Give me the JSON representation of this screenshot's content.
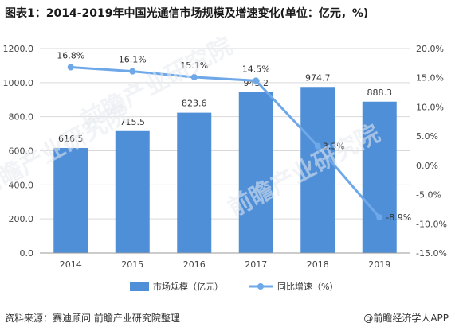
{
  "title": "图表1：2014-2019年中国光通信市场规模及增速变化(单位：亿元，%)",
  "footer": {
    "source": "资料来源：赛迪顾问 前瞻产业研究院整理",
    "brand": "@前瞻经济学人APP"
  },
  "watermarks": [
    "前瞻产业研究院",
    "前瞻产业研究院",
    "前瞻产业研究院"
  ],
  "colors": {
    "bar": "#4f8fd8",
    "line": "#6fa8e8",
    "grid": "#d9d9d9",
    "axis": "#999999"
  },
  "chart_data": {
    "type": "bar",
    "categories": [
      "2014",
      "2015",
      "2016",
      "2017",
      "2018",
      "2019"
    ],
    "series": [
      {
        "name": "市场规模（亿元）",
        "type": "bar",
        "axis": "left",
        "values": [
          616.5,
          715.5,
          823.6,
          943.2,
          974.7,
          888.3
        ],
        "labels": [
          "616.5",
          "715.5",
          "823.6",
          "943.2",
          "974.7",
          "888.3"
        ]
      },
      {
        "name": "同比增速（%）",
        "type": "line",
        "axis": "right",
        "values": [
          16.8,
          16.1,
          15.1,
          14.5,
          3.3,
          -8.9
        ],
        "labels": [
          "16.8%",
          "16.1%",
          "15.1%",
          "14.5%",
          "3.3%",
          "-8.9%"
        ]
      }
    ],
    "y_left": {
      "min": 0,
      "max": 1200,
      "ticks": [
        "0.0",
        "200.0",
        "400.0",
        "600.0",
        "800.0",
        "1000.0",
        "1200.0"
      ]
    },
    "y_right": {
      "min": -15,
      "max": 20,
      "ticks": [
        "-15.0%",
        "-10.0%",
        "-5.0%",
        "0.0%",
        "5.0%",
        "10.0%",
        "15.0%",
        "20.0%"
      ]
    },
    "grid": true,
    "legend_position": "bottom"
  }
}
